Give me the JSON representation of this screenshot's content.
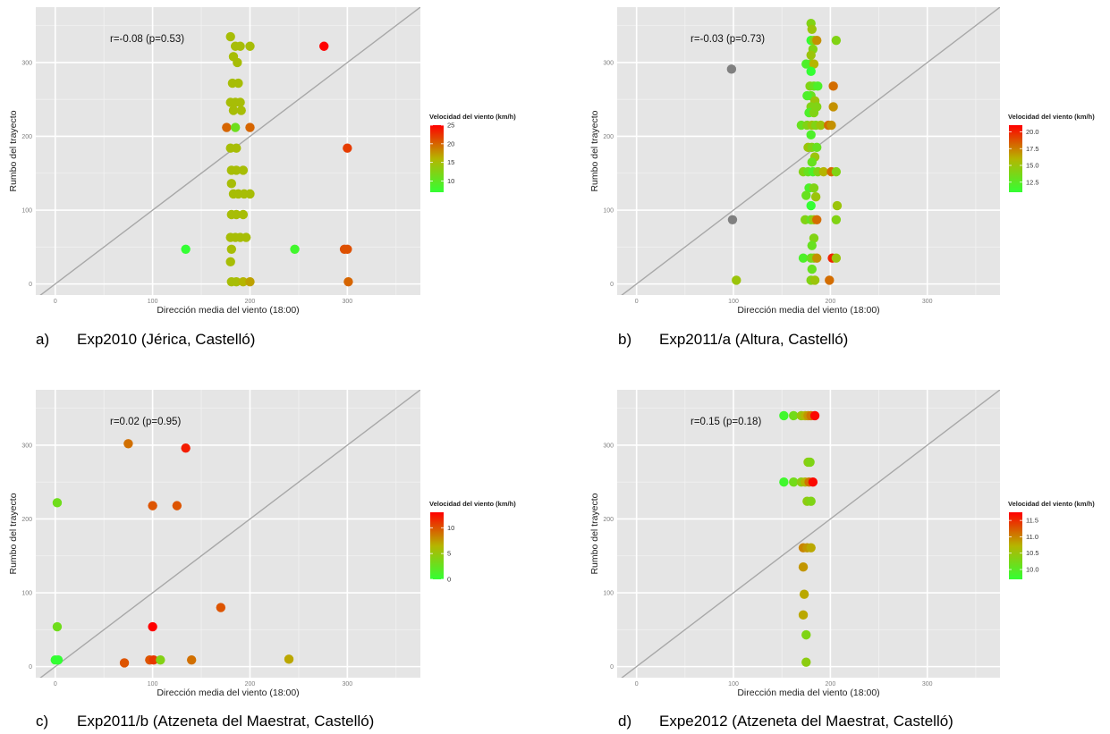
{
  "panels": [
    {
      "letter": "a)",
      "caption": "Exp2010 (Jérica, Castelló)",
      "chart_data": {
        "type": "scatter",
        "xlabel": "Dirección media del viento (18:00)",
        "ylabel": "Rumbo del trayecto",
        "xlim": [
          -20,
          375
        ],
        "ylim": [
          -15,
          375
        ],
        "x_ticks": [
          0,
          100,
          200,
          300
        ],
        "y_ticks": [
          0,
          100,
          200,
          300
        ],
        "grid": true,
        "reference_line": "y = x",
        "annotation": "r=-0.08 (p=0.53)",
        "color_scale": {
          "title": "Velocidad del viento (km/h)",
          "min": 7,
          "max": 25,
          "ticks": [
            10,
            15,
            20,
            25
          ],
          "low_color": "#33ff33",
          "mid_color": "#b5b500",
          "high_color": "#ff0000",
          "placement": "right"
        },
        "points": [
          [
            180,
            335,
            15
          ],
          [
            185,
            322,
            15
          ],
          [
            190,
            322,
            15
          ],
          [
            200,
            322,
            15
          ],
          [
            276,
            322,
            25
          ],
          [
            183,
            308,
            15
          ],
          [
            187,
            300,
            15
          ],
          [
            182,
            272,
            15
          ],
          [
            188,
            272,
            15
          ],
          [
            180,
            246,
            15
          ],
          [
            185,
            246,
            15
          ],
          [
            190,
            246,
            15
          ],
          [
            183,
            235,
            15
          ],
          [
            191,
            235,
            15
          ],
          [
            176,
            212,
            20
          ],
          [
            185,
            212,
            11
          ],
          [
            200,
            212,
            20
          ],
          [
            180,
            184,
            15
          ],
          [
            186,
            184,
            15
          ],
          [
            300,
            184,
            22
          ],
          [
            181,
            154,
            15
          ],
          [
            186,
            154,
            15
          ],
          [
            193,
            154,
            15
          ],
          [
            181,
            136,
            15
          ],
          [
            183,
            122,
            15
          ],
          [
            188,
            122,
            15
          ],
          [
            194,
            122,
            15
          ],
          [
            200,
            122,
            15
          ],
          [
            181,
            94,
            15
          ],
          [
            186,
            94,
            15
          ],
          [
            193,
            94,
            15
          ],
          [
            180,
            63,
            15
          ],
          [
            185,
            63,
            15
          ],
          [
            190,
            63,
            15
          ],
          [
            196,
            63,
            15
          ],
          [
            134,
            47,
            7
          ],
          [
            181,
            47,
            15
          ],
          [
            246,
            47,
            8
          ],
          [
            297,
            47,
            21
          ],
          [
            300,
            47,
            21
          ],
          [
            180,
            30,
            15
          ],
          [
            181,
            3,
            15
          ],
          [
            186,
            3,
            15
          ],
          [
            193,
            3,
            16
          ],
          [
            200,
            3,
            17
          ],
          [
            301,
            3,
            20
          ]
        ]
      }
    },
    {
      "letter": "b)",
      "caption": "Exp2011/a (Altura, Castelló)",
      "chart_data": {
        "type": "scatter",
        "xlabel": "Dirección media del viento (18:00)",
        "ylabel": "Rumbo del trayecto",
        "xlim": [
          -20,
          375
        ],
        "ylim": [
          -15,
          375
        ],
        "x_ticks": [
          0,
          100,
          200,
          300
        ],
        "y_ticks": [
          0,
          100,
          200,
          300
        ],
        "grid": true,
        "reference_line": "y = x",
        "annotation": "r=-0.03 (p=0.73)",
        "color_scale": {
          "title": "Velocidad del viento (km/h)",
          "min": 11,
          "max": 21,
          "ticks": [
            12.5,
            15.0,
            17.5,
            20.0
          ],
          "low_color": "#33ff33",
          "mid_color": "#b5b500",
          "high_color": "#ff0000",
          "placement": "right"
        },
        "missing_color": "#808080",
        "points": [
          [
            180,
            353,
            14
          ],
          [
            181,
            345,
            15
          ],
          [
            180,
            330,
            11
          ],
          [
            183,
            330,
            14
          ],
          [
            186,
            330,
            17
          ],
          [
            206,
            330,
            14
          ],
          [
            182,
            318,
            14
          ],
          [
            180,
            310,
            15
          ],
          [
            180,
            298,
            14
          ],
          [
            175,
            298,
            12
          ],
          [
            183,
            298,
            16
          ],
          [
            98,
            291,
            null
          ],
          [
            180,
            288,
            11
          ],
          [
            179,
            268,
            14
          ],
          [
            183,
            268,
            13
          ],
          [
            187,
            268,
            12
          ],
          [
            203,
            268,
            18
          ],
          [
            180,
            255,
            13
          ],
          [
            176,
            255,
            12
          ],
          [
            184,
            248,
            15
          ],
          [
            180,
            240,
            14
          ],
          [
            186,
            240,
            14
          ],
          [
            203,
            240,
            17
          ],
          [
            178,
            232,
            12
          ],
          [
            183,
            232,
            14
          ],
          [
            170,
            215,
            13
          ],
          [
            176,
            215,
            14
          ],
          [
            181,
            215,
            15
          ],
          [
            185,
            215,
            14
          ],
          [
            190,
            215,
            15
          ],
          [
            198,
            215,
            18
          ],
          [
            201,
            215,
            17
          ],
          [
            180,
            202,
            12
          ],
          [
            177,
            185,
            15
          ],
          [
            181,
            185,
            14
          ],
          [
            186,
            185,
            13
          ],
          [
            184,
            172,
            15
          ],
          [
            181,
            165,
            13
          ],
          [
            172,
            152,
            14
          ],
          [
            177,
            152,
            13
          ],
          [
            182,
            152,
            12
          ],
          [
            187,
            152,
            14
          ],
          [
            193,
            152,
            16
          ],
          [
            201,
            152,
            18
          ],
          [
            206,
            152,
            14
          ],
          [
            178,
            130,
            12
          ],
          [
            183,
            130,
            14
          ],
          [
            175,
            120,
            13
          ],
          [
            185,
            118,
            15
          ],
          [
            180,
            106,
            11
          ],
          [
            207,
            106,
            15
          ],
          [
            99,
            87,
            null
          ],
          [
            174,
            87,
            14
          ],
          [
            180,
            87,
            13
          ],
          [
            183,
            87,
            15
          ],
          [
            186,
            87,
            18
          ],
          [
            206,
            87,
            14
          ],
          [
            183,
            62,
            14
          ],
          [
            181,
            52,
            13
          ],
          [
            172,
            35,
            12
          ],
          [
            180,
            35,
            13
          ],
          [
            183,
            35,
            14
          ],
          [
            186,
            35,
            17
          ],
          [
            202,
            35,
            20
          ],
          [
            206,
            35,
            15
          ],
          [
            181,
            20,
            13
          ],
          [
            103,
            5,
            15
          ],
          [
            180,
            5,
            14
          ],
          [
            184,
            5,
            15
          ],
          [
            199,
            5,
            18
          ]
        ]
      }
    },
    {
      "letter": "c)",
      "caption": "Exp2011/b (Atzeneta del Maestrat, Castelló)",
      "chart_data": {
        "type": "scatter",
        "xlabel": "Dirección media del viento (18:00)",
        "ylabel": "Rumbo del trayecto",
        "xlim": [
          -20,
          375
        ],
        "ylim": [
          -15,
          375
        ],
        "x_ticks": [
          0,
          100,
          200,
          300
        ],
        "y_ticks": [
          0,
          100,
          200,
          300
        ],
        "grid": true,
        "reference_line": "y = x",
        "annotation": "r=0.02 (p=0.95)",
        "color_scale": {
          "title": "Velocidad del viento (km/h)",
          "min": 0,
          "max": 13,
          "ticks": [
            0,
            5,
            10
          ],
          "low_color": "#33ff33",
          "mid_color": "#b5b500",
          "high_color": "#ff0000",
          "placement": "right"
        },
        "points": [
          [
            75,
            302,
            9
          ],
          [
            134,
            296,
            12
          ],
          [
            2,
            222,
            3
          ],
          [
            100,
            218,
            10
          ],
          [
            125,
            218,
            10
          ],
          [
            170,
            80,
            10
          ],
          [
            100,
            54,
            13
          ],
          [
            2,
            54,
            3
          ],
          [
            0,
            9,
            0
          ],
          [
            3,
            9,
            0
          ],
          [
            71,
            5,
            10
          ],
          [
            97,
            9,
            10
          ],
          [
            101,
            9,
            11
          ],
          [
            108,
            9,
            4
          ],
          [
            140,
            9,
            9
          ],
          [
            240,
            10,
            7
          ]
        ]
      }
    },
    {
      "letter": "d)",
      "caption": "Expe2012 (Atzeneta del Maestrat, Castelló)",
      "chart_data": {
        "type": "scatter",
        "xlabel": "Dirección media del viento (18:00)",
        "ylabel": "Rumbo del trayecto",
        "xlim": [
          -20,
          375
        ],
        "ylim": [
          -15,
          375
        ],
        "x_ticks": [
          0,
          100,
          200,
          300
        ],
        "y_ticks": [
          0,
          100,
          200,
          300
        ],
        "grid": true,
        "reference_line": "y = x",
        "annotation": "r=0.15 (p=0.18)",
        "color_scale": {
          "title": "Velocidad del viento (km/h)",
          "min": 9.7,
          "max": 11.75,
          "ticks": [
            10.0,
            10.5,
            11.0,
            11.5
          ],
          "low_color": "#33ff33",
          "mid_color": "#b5b500",
          "high_color": "#ff0000",
          "placement": "right"
        },
        "points": [
          [
            152,
            340,
            9.8
          ],
          [
            162,
            340,
            10.2
          ],
          [
            170,
            340,
            10.5
          ],
          [
            174,
            340,
            10.7
          ],
          [
            177,
            340,
            10.9
          ],
          [
            180,
            340,
            11.1
          ],
          [
            184,
            340,
            11.7
          ],
          [
            177,
            277,
            10.4
          ],
          [
            179,
            277,
            10.3
          ],
          [
            152,
            250,
            9.8
          ],
          [
            162,
            250,
            10.2
          ],
          [
            170,
            250,
            10.4
          ],
          [
            174,
            250,
            10.7
          ],
          [
            178,
            250,
            11.1
          ],
          [
            182,
            250,
            11.7
          ],
          [
            176,
            224,
            10.4
          ],
          [
            180,
            224,
            10.3
          ],
          [
            172,
            161,
            11.0
          ],
          [
            176,
            161,
            10.9
          ],
          [
            180,
            161,
            10.8
          ],
          [
            172,
            135,
            10.9
          ],
          [
            173,
            98,
            10.8
          ],
          [
            172,
            70,
            10.8
          ],
          [
            175,
            43,
            10.3
          ],
          [
            175,
            6,
            10.4
          ]
        ]
      }
    }
  ]
}
